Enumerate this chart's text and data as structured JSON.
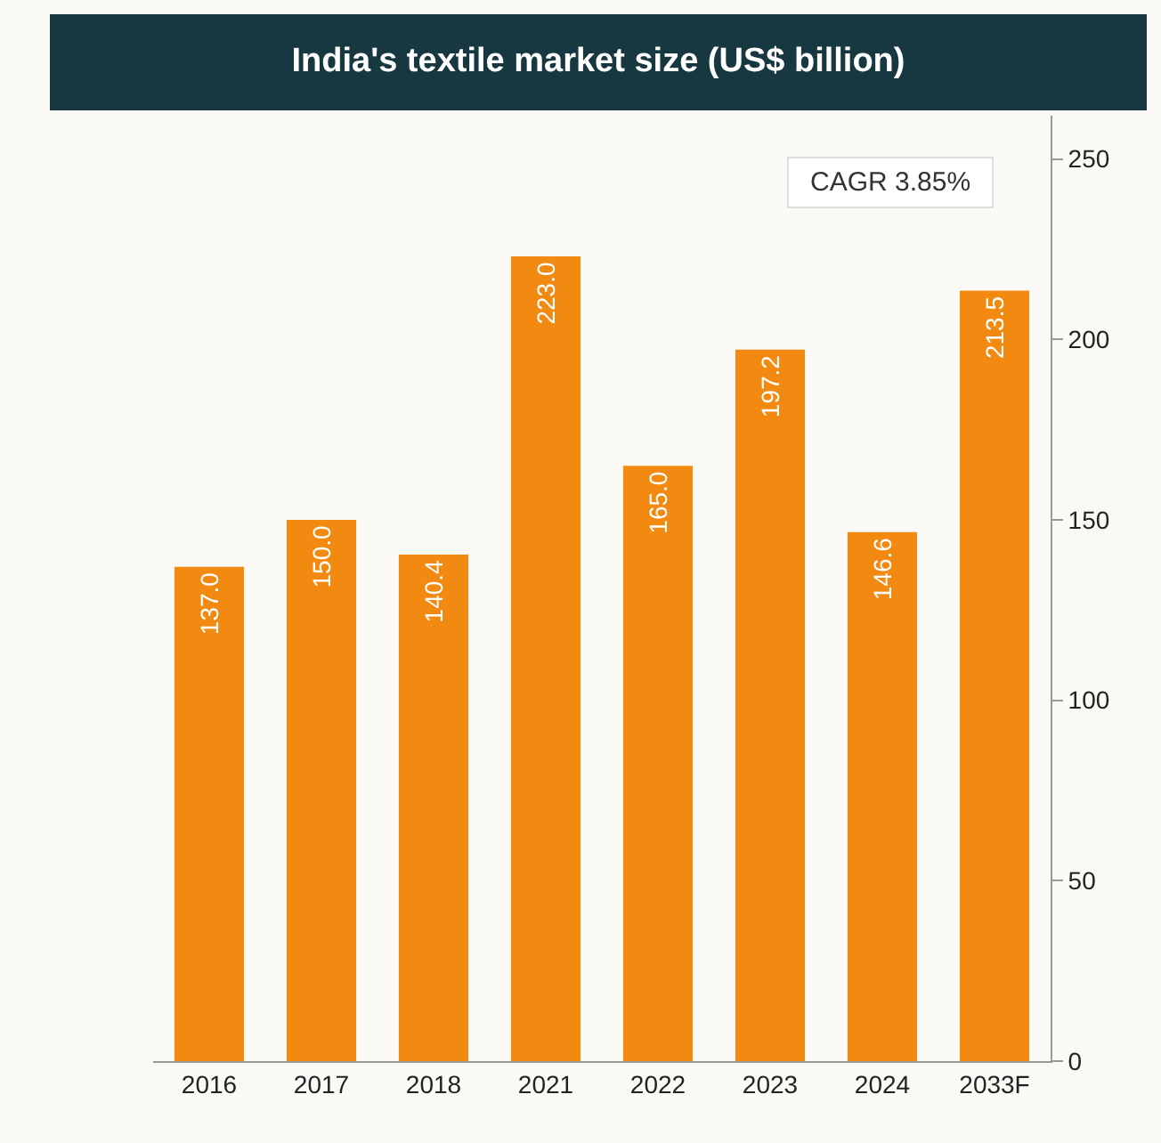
{
  "chart_data": {
    "type": "bar",
    "title": "India's textile market size (US$ billion)",
    "categories": [
      "2016",
      "2017",
      "2018",
      "2021",
      "2022",
      "2023",
      "2024",
      "2033F"
    ],
    "values": [
      137.0,
      150.0,
      140.4,
      223.0,
      165.0,
      197.2,
      146.6,
      213.5
    ],
    "value_labels": [
      "137.0",
      "150.0",
      "140.4",
      "223.0",
      "165.0",
      "197.2",
      "146.6",
      "213.5"
    ],
    "color": "#f28a12",
    "ylim": [
      0,
      262
    ],
    "yticks": [
      0,
      50,
      100,
      150,
      200,
      250
    ],
    "grid": false,
    "legend": false,
    "annotations": [
      "CAGR 3.85%"
    ]
  }
}
